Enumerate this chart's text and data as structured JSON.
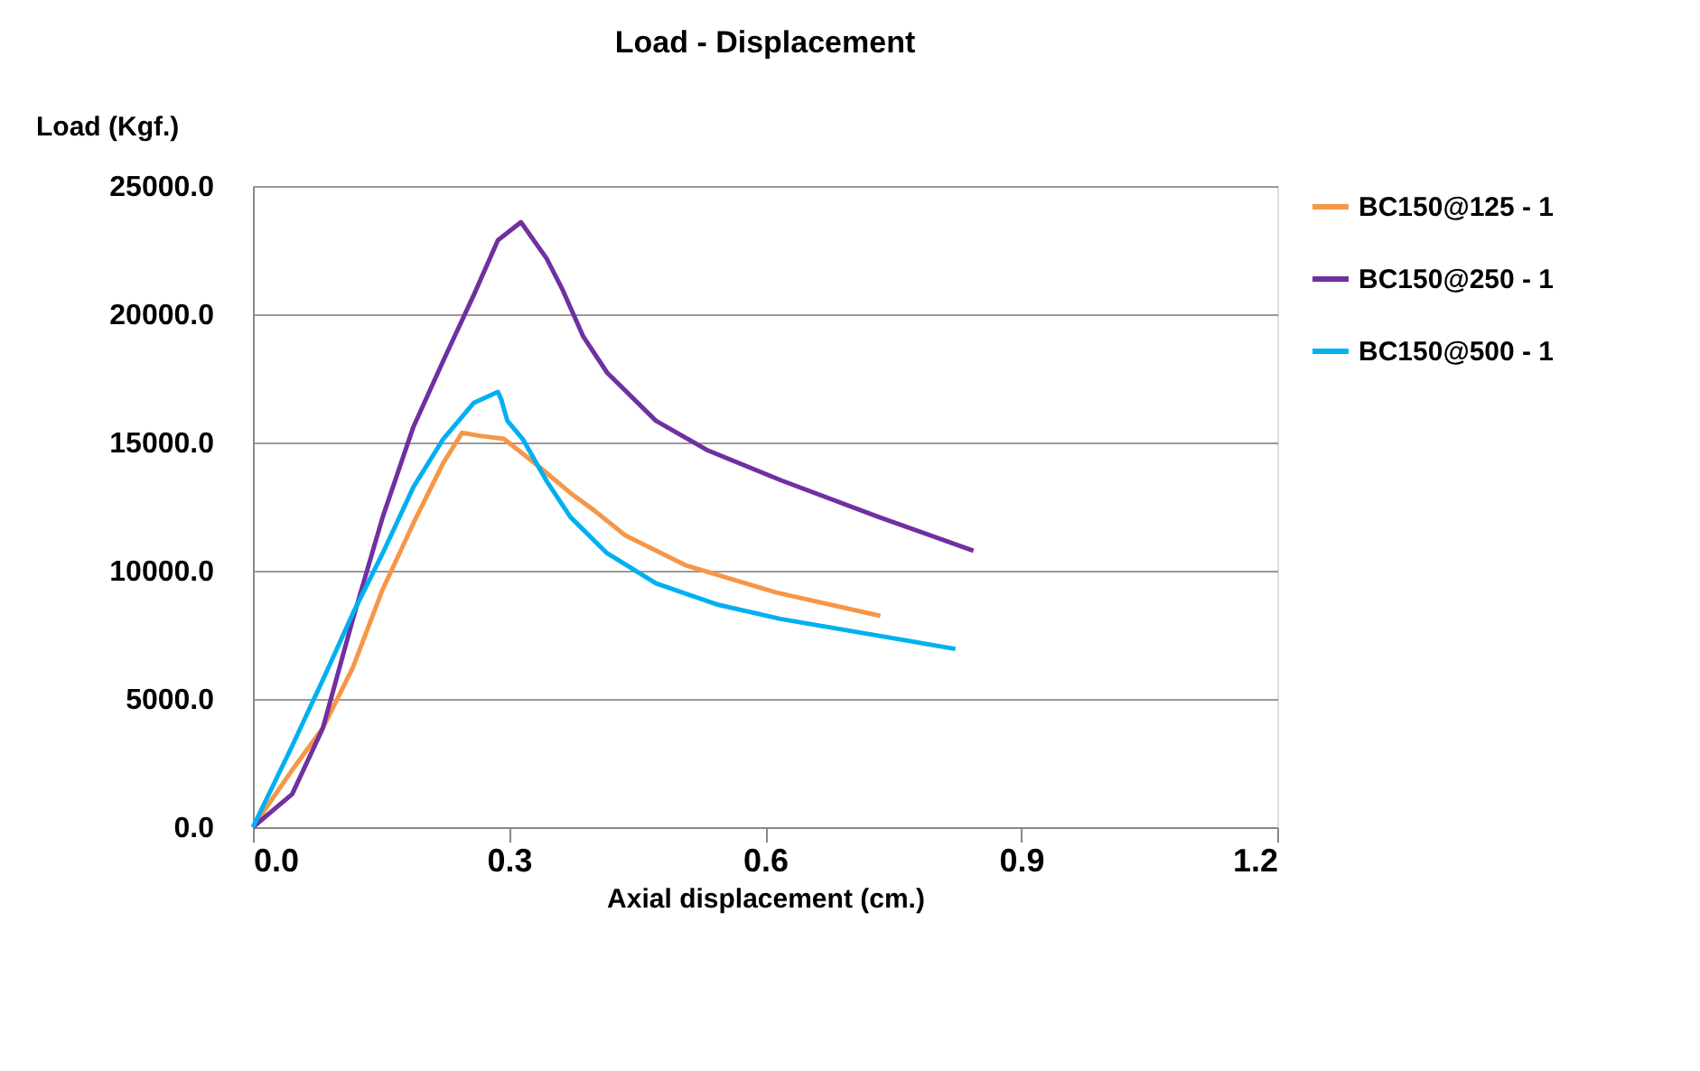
{
  "chart_data": {
    "type": "line",
    "title": "Load - Displacement",
    "xlabel": "Axial displacement (cm.)",
    "ylabel": "Load (Kgf.)",
    "xlim": [
      0,
      1.2
    ],
    "xticks": [
      {
        "value": 0,
        "label": "0.0"
      },
      {
        "value": 0.3,
        "label": "0.3"
      },
      {
        "value": 0.6,
        "label": "0.6"
      },
      {
        "value": 0.9,
        "label": "0.9"
      },
      {
        "value": 1.2,
        "label": "1.2"
      }
    ],
    "ylim": [
      0,
      25000
    ],
    "yticks": [
      {
        "value": 0,
        "label": "0.0"
      },
      {
        "value": 5000,
        "label": "5000.0"
      },
      {
        "value": 10000,
        "label": "10000.0"
      },
      {
        "value": 15000,
        "label": "15000.0"
      },
      {
        "value": 20000,
        "label": "20000.0"
      },
      {
        "value": 25000,
        "label": "25000.0"
      }
    ],
    "grid": "y",
    "legend": "right",
    "marker": "none",
    "line_style": "solid",
    "series": [
      {
        "name": "BC150@125 - 1",
        "color": "#f79646",
        "x": [
          0,
          0.046,
          0.082,
          0.117,
          0.152,
          0.188,
          0.223,
          0.245,
          0.266,
          0.294,
          0.33,
          0.372,
          0.401,
          0.436,
          0.507,
          0.613,
          0.735
        ],
        "values": [
          0,
          2230,
          3870,
          6220,
          9270,
          11850,
          14200,
          15380,
          15260,
          15140,
          14200,
          13030,
          12320,
          11380,
          10210,
          9150,
          8240
        ]
      },
      {
        "name": "BC150@250 - 1",
        "color": "#7030a0",
        "x": [
          0,
          0.046,
          0.082,
          0.117,
          0.152,
          0.188,
          0.223,
          0.259,
          0.287,
          0.314,
          0.344,
          0.362,
          0.387,
          0.415,
          0.472,
          0.533,
          0.619,
          0.732,
          0.844
        ],
        "values": [
          0,
          1290,
          3870,
          8100,
          12090,
          15610,
          18190,
          20770,
          22890,
          23590,
          22180,
          21010,
          19130,
          17720,
          15850,
          14690,
          13520,
          12110,
          10780
        ]
      },
      {
        "name": "BC150@500 - 1",
        "color": "#00b0f0",
        "x": [
          0,
          0.046,
          0.082,
          0.117,
          0.152,
          0.188,
          0.223,
          0.259,
          0.287,
          0.291,
          0.298,
          0.316,
          0.344,
          0.372,
          0.415,
          0.472,
          0.543,
          0.618,
          0.823
        ],
        "values": [
          0,
          3170,
          5750,
          8330,
          10680,
          13260,
          15140,
          16550,
          16970,
          16670,
          15850,
          15140,
          13500,
          12090,
          10680,
          9510,
          8690,
          8120,
          6950
        ]
      }
    ]
  }
}
